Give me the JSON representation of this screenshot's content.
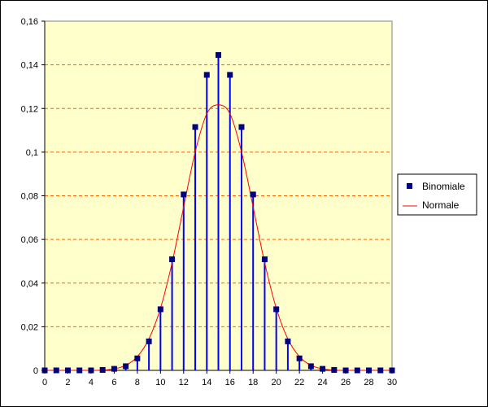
{
  "chart_data": {
    "type": "scatter",
    "title": "",
    "xlabel": "",
    "ylabel": "",
    "xlim": [
      0,
      30
    ],
    "ylim": [
      0,
      0.16
    ],
    "x_ticks": [
      0,
      2,
      4,
      6,
      8,
      10,
      12,
      14,
      16,
      18,
      20,
      22,
      24,
      26,
      28,
      30
    ],
    "y_ticks": [
      0,
      0.02,
      0.04,
      0.06,
      0.08,
      0.1,
      0.12,
      0.14,
      0.16
    ],
    "x_tick_labels": [
      "0",
      "2",
      "4",
      "6",
      "8",
      "10",
      "12",
      "14",
      "16",
      "18",
      "20",
      "22",
      "24",
      "26",
      "28",
      "30"
    ],
    "y_tick_labels": [
      "0",
      "0,02",
      "0,04",
      "0,06",
      "0,08",
      "0,1",
      "0,12",
      "0,14",
      "0,16"
    ],
    "grid": "horizontal dashed",
    "legend_position": "right",
    "plot_background": "#ffffcc",
    "series": [
      {
        "name": "Binomiale",
        "style": "square markers with vertical drop lines",
        "color": "#000080",
        "line_color": "#0000ff",
        "x": [
          0,
          1,
          2,
          3,
          4,
          5,
          6,
          7,
          8,
          9,
          10,
          11,
          12,
          13,
          14,
          15,
          16,
          17,
          18,
          19,
          20,
          21,
          22,
          23,
          24,
          25,
          26,
          27,
          28,
          29,
          30
        ],
        "y": [
          0,
          0,
          0,
          0,
          0,
          0.0002,
          0.0007,
          0.0019,
          0.0055,
          0.0133,
          0.028,
          0.0509,
          0.0806,
          0.1115,
          0.1354,
          0.1445,
          0.1354,
          0.1115,
          0.0806,
          0.0509,
          0.028,
          0.0133,
          0.0055,
          0.0019,
          0.0007,
          0.0002,
          0,
          0,
          0,
          0,
          0
        ]
      },
      {
        "name": "Normale",
        "style": "line",
        "color": "#ff0000",
        "x": [
          0,
          1,
          2,
          3,
          4,
          5,
          6,
          7,
          8,
          9,
          10,
          11,
          12,
          13,
          14,
          15,
          16,
          17,
          18,
          19,
          20,
          21,
          22,
          23,
          24,
          25,
          26,
          27,
          28,
          29,
          30
        ],
        "y": [
          0,
          0,
          0,
          0,
          0,
          0.0001,
          0.0007,
          0.0023,
          0.0063,
          0.0144,
          0.0285,
          0.0493,
          0.0749,
          0.1001,
          0.1176,
          0.1217,
          0.1176,
          0.1001,
          0.0749,
          0.0493,
          0.0285,
          0.0144,
          0.0063,
          0.0023,
          0.0007,
          0.0001,
          0,
          0,
          0,
          0,
          0
        ]
      }
    ]
  },
  "legend": {
    "items": [
      "Binomiale",
      "Normale"
    ]
  }
}
